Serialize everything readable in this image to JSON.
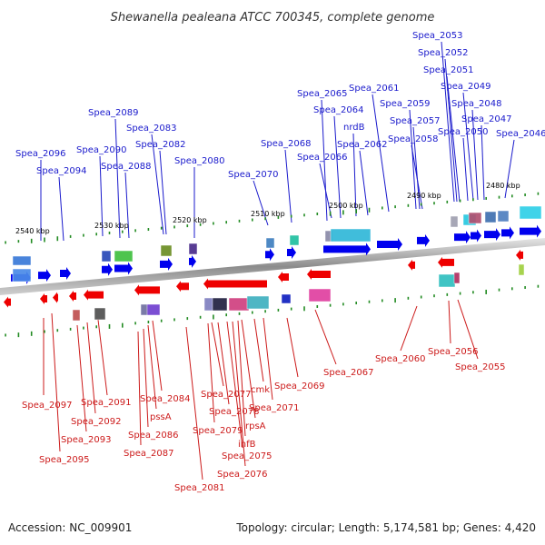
{
  "title": "Shewanella pealeana ATCC 700345, complete genome",
  "footer": {
    "accession": "Accession: NC_009901",
    "summary": "Topology: circular; Length: 5,174,581 bp; Genes: 4,420"
  },
  "colors": {
    "forward_gene": "#0000ee",
    "reverse_gene": "#ee0000",
    "forward_label": "#1a1acc",
    "reverse_label": "#cc1a1a",
    "backbone": "#9a9a9a",
    "tick": "#228b22"
  },
  "scale_ticks": [
    "2540 kbp",
    "2530 kbp",
    "2520 kbp",
    "2510 kbp",
    "2500 kbp",
    "2490 kbp",
    "2480 kbp"
  ],
  "forward_labels": [
    "Spea_2096",
    "Spea_2094",
    "Spea_2090",
    "Spea_2089",
    "Spea_2088",
    "Spea_2083",
    "Spea_2082",
    "Spea_2080",
    "Spea_2070",
    "Spea_2068",
    "Spea_2066",
    "Spea_2065",
    "Spea_2064",
    "nrdB",
    "Spea_2062",
    "Spea_2061",
    "Spea_2059",
    "Spea_2057",
    "Spea_2058",
    "Spea_2053",
    "Spea_2052",
    "Spea_2051",
    "Spea_2049",
    "Spea_2048",
    "Spea_2047",
    "Spea_2050",
    "Spea_2046"
  ],
  "reverse_labels": [
    "Spea_2097",
    "Spea_2095",
    "Spea_2093",
    "Spea_2092",
    "Spea_2091",
    "Spea_2084",
    "pssA",
    "Spea_2086",
    "Spea_2087",
    "Spea_2081",
    "Spea_2077",
    "Spea_2078",
    "Spea_2079",
    "Spea_2075",
    "Spea_2076",
    "ihfB",
    "rpsA",
    "cmk",
    "Spea_2071",
    "Spea_2069",
    "Spea_2067",
    "Spea_2060",
    "Spea_2056",
    "Spea_2055"
  ]
}
